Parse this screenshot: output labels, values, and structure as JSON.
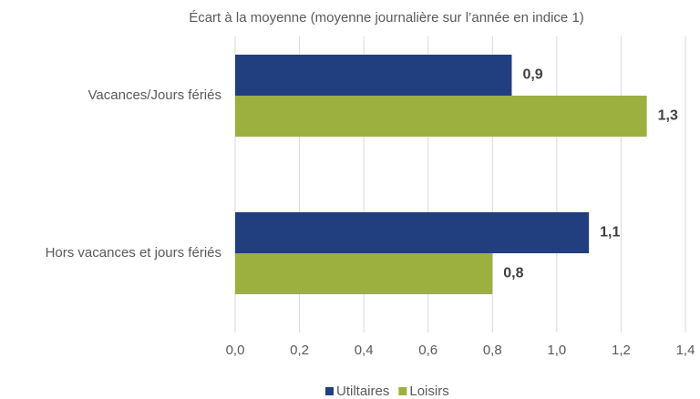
{
  "chart_data": {
    "type": "hbar",
    "title": "Écart à la moyenne (moyenne journalière sur l’année en indice 1)",
    "categories": [
      "Vacances/Jours fériés",
      "Hors vacances et jours fériés"
    ],
    "series": [
      {
        "name": "Utiltaires",
        "color": "#213f7f",
        "values": [
          0.86,
          1.1
        ],
        "value_labels": [
          "0,9",
          "1,1"
        ]
      },
      {
        "name": "Loisirs",
        "color": "#9bb03f",
        "values": [
          1.28,
          0.8
        ],
        "value_labels": [
          "1,3",
          "0,8"
        ]
      }
    ],
    "xlim": [
      0,
      1.4
    ],
    "xticks": [
      {
        "value": 0,
        "label": "0,0"
      },
      {
        "value": 0.2,
        "label": "0,2"
      },
      {
        "value": 0.4,
        "label": "0,4"
      },
      {
        "value": 0.6,
        "label": "0,6"
      },
      {
        "value": 0.8,
        "label": "0,8"
      },
      {
        "value": 1.0,
        "label": "1,0"
      },
      {
        "value": 1.2,
        "label": "1,2"
      },
      {
        "value": 1.4,
        "label": "1,4"
      }
    ],
    "grid": true,
    "legend": "bottom"
  }
}
